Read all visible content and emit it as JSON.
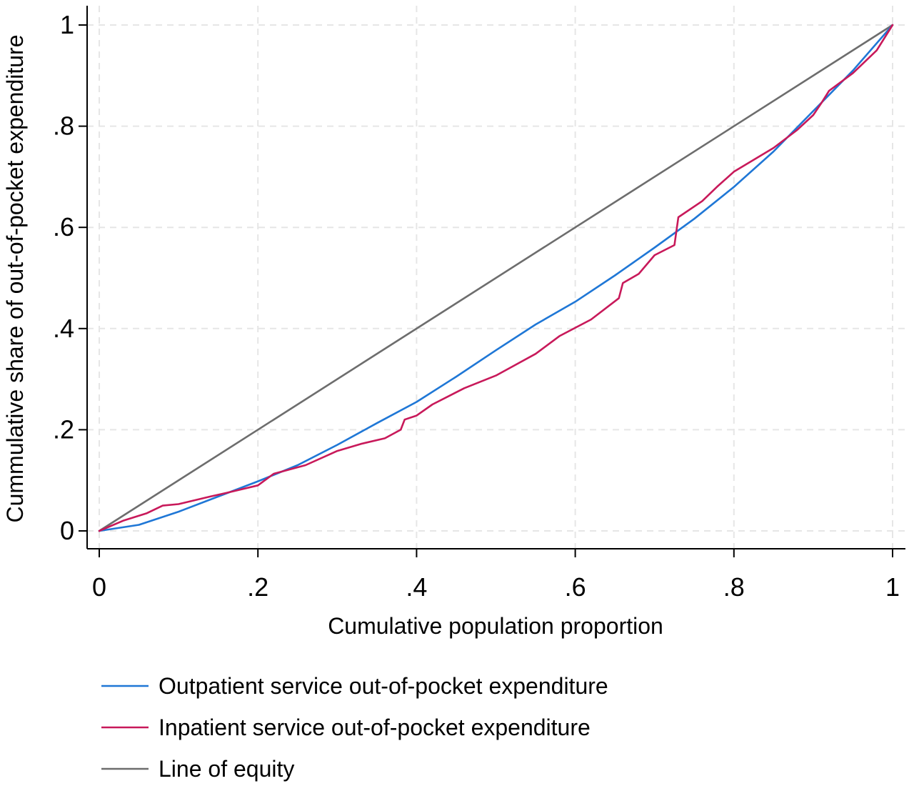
{
  "chart_data": {
    "type": "line",
    "xlabel": "Cumulative population proportion",
    "ylabel": "Cummulative share of out-of-pocket expenditure",
    "xlim": [
      0,
      1
    ],
    "ylim": [
      0,
      1
    ],
    "x_ticks": [
      {
        "value": 0,
        "label": "0"
      },
      {
        "value": 0.2,
        "label": ".2"
      },
      {
        "value": 0.4,
        "label": ".4"
      },
      {
        "value": 0.6,
        "label": ".6"
      },
      {
        "value": 0.8,
        "label": ".8"
      },
      {
        "value": 1,
        "label": "1"
      }
    ],
    "y_ticks": [
      {
        "value": 0,
        "label": "0"
      },
      {
        "value": 0.2,
        "label": ".2"
      },
      {
        "value": 0.4,
        "label": ".4"
      },
      {
        "value": 0.6,
        "label": ".6"
      },
      {
        "value": 0.8,
        "label": ".8"
      },
      {
        "value": 1,
        "label": "1"
      }
    ],
    "grid": true,
    "legend_position": "bottom-left",
    "series": [
      {
        "name": "Outpatient service out-of-pocket expenditure",
        "color": "#1f77d6",
        "points": [
          [
            0,
            0
          ],
          [
            0.05,
            0.012
          ],
          [
            0.1,
            0.038
          ],
          [
            0.15,
            0.068
          ],
          [
            0.2,
            0.098
          ],
          [
            0.25,
            0.13
          ],
          [
            0.3,
            0.17
          ],
          [
            0.35,
            0.213
          ],
          [
            0.4,
            0.255
          ],
          [
            0.45,
            0.305
          ],
          [
            0.5,
            0.357
          ],
          [
            0.55,
            0.408
          ],
          [
            0.6,
            0.453
          ],
          [
            0.65,
            0.505
          ],
          [
            0.7,
            0.56
          ],
          [
            0.75,
            0.617
          ],
          [
            0.8,
            0.68
          ],
          [
            0.85,
            0.75
          ],
          [
            0.9,
            0.83
          ],
          [
            0.95,
            0.91
          ],
          [
            1,
            1
          ]
        ]
      },
      {
        "name": "Inpatient service out-of-pocket expenditure",
        "color": "#c8195a",
        "points": [
          [
            0,
            0
          ],
          [
            0.03,
            0.02
          ],
          [
            0.06,
            0.035
          ],
          [
            0.08,
            0.05
          ],
          [
            0.1,
            0.053
          ],
          [
            0.14,
            0.068
          ],
          [
            0.16,
            0.075
          ],
          [
            0.2,
            0.09
          ],
          [
            0.22,
            0.113
          ],
          [
            0.26,
            0.13
          ],
          [
            0.3,
            0.158
          ],
          [
            0.33,
            0.172
          ],
          [
            0.36,
            0.183
          ],
          [
            0.38,
            0.2
          ],
          [
            0.385,
            0.22
          ],
          [
            0.4,
            0.228
          ],
          [
            0.42,
            0.25
          ],
          [
            0.46,
            0.282
          ],
          [
            0.5,
            0.307
          ],
          [
            0.55,
            0.35
          ],
          [
            0.58,
            0.385
          ],
          [
            0.62,
            0.418
          ],
          [
            0.655,
            0.46
          ],
          [
            0.66,
            0.49
          ],
          [
            0.68,
            0.508
          ],
          [
            0.7,
            0.545
          ],
          [
            0.725,
            0.565
          ],
          [
            0.73,
            0.62
          ],
          [
            0.76,
            0.652
          ],
          [
            0.78,
            0.682
          ],
          [
            0.8,
            0.71
          ],
          [
            0.85,
            0.757
          ],
          [
            0.88,
            0.793
          ],
          [
            0.9,
            0.822
          ],
          [
            0.91,
            0.845
          ],
          [
            0.92,
            0.87
          ],
          [
            0.95,
            0.905
          ],
          [
            0.98,
            0.95
          ],
          [
            1,
            1
          ]
        ]
      },
      {
        "name": "Line of equity",
        "color": "#6d6d6d",
        "points": [
          [
            0,
            0
          ],
          [
            1,
            1
          ]
        ]
      }
    ]
  }
}
